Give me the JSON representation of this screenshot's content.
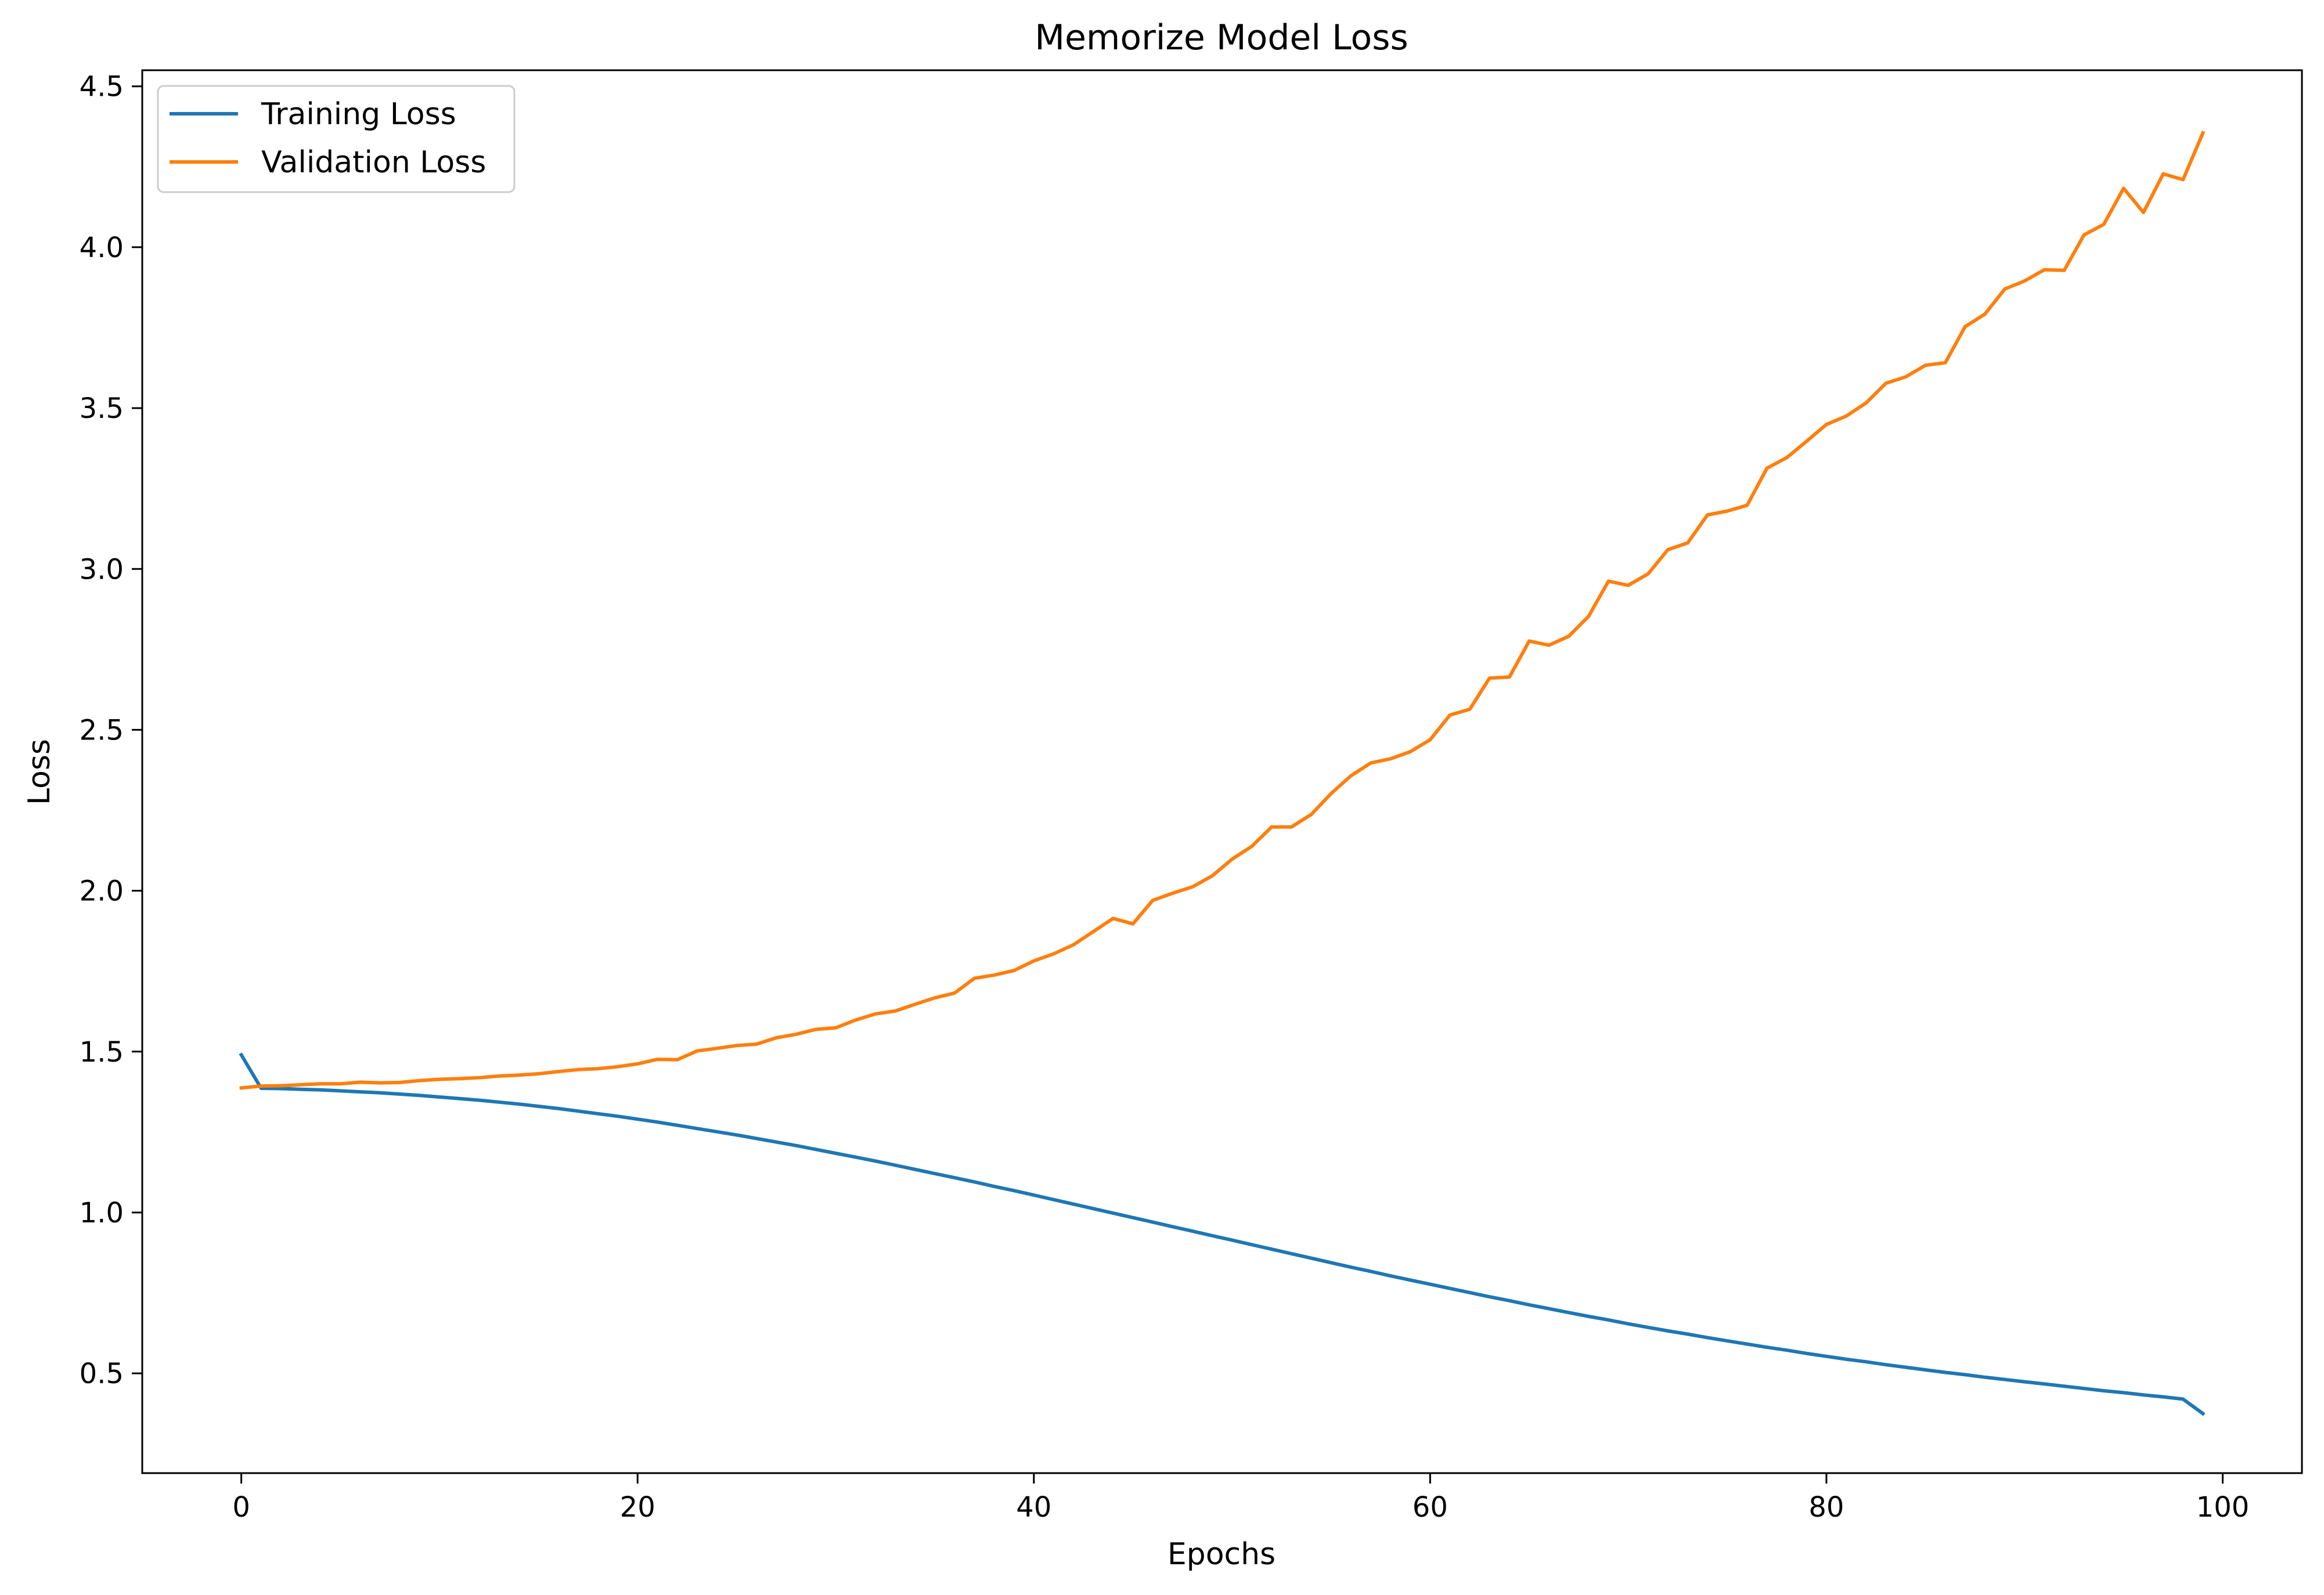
{
  "chart_data": {
    "type": "line",
    "title": "Memorize Model Loss",
    "xlabel": "Epochs",
    "ylabel": "Loss",
    "xlim": [
      -5,
      104
    ],
    "ylim": [
      0.19,
      4.55
    ],
    "xticks": [
      0,
      20,
      40,
      60,
      80,
      100
    ],
    "yticks": [
      0.5,
      1.0,
      1.5,
      2.0,
      2.5,
      3.0,
      3.5,
      4.0,
      4.5
    ],
    "grid": false,
    "legend_position": "top-left",
    "x": [
      0,
      1,
      2,
      3,
      4,
      5,
      6,
      7,
      8,
      9,
      10,
      11,
      12,
      13,
      14,
      15,
      16,
      17,
      18,
      19,
      20,
      21,
      22,
      23,
      24,
      25,
      26,
      27,
      28,
      29,
      30,
      31,
      32,
      33,
      34,
      35,
      36,
      37,
      38,
      39,
      40,
      41,
      42,
      43,
      44,
      45,
      46,
      47,
      48,
      49,
      50,
      51,
      52,
      53,
      54,
      55,
      56,
      57,
      58,
      59,
      60,
      61,
      62,
      63,
      64,
      65,
      66,
      67,
      68,
      69,
      70,
      71,
      72,
      73,
      74,
      75,
      76,
      77,
      78,
      79,
      80,
      81,
      82,
      83,
      84,
      85,
      86,
      87,
      88,
      89,
      90,
      91,
      92,
      93,
      94,
      95,
      96,
      97,
      98,
      99
    ],
    "series": [
      {
        "name": "Training Loss",
        "color": "#1f77b4",
        "values": [
          1.49,
          1.386,
          1.385,
          1.383,
          1.381,
          1.378,
          1.375,
          1.372,
          1.368,
          1.364,
          1.359,
          1.354,
          1.349,
          1.343,
          1.337,
          1.33,
          1.323,
          1.315,
          1.307,
          1.299,
          1.29,
          1.281,
          1.271,
          1.261,
          1.251,
          1.241,
          1.23,
          1.219,
          1.208,
          1.196,
          1.184,
          1.172,
          1.16,
          1.147,
          1.134,
          1.121,
          1.108,
          1.095,
          1.081,
          1.068,
          1.054,
          1.04,
          1.026,
          1.012,
          0.998,
          0.984,
          0.97,
          0.956,
          0.942,
          0.928,
          0.914,
          0.9,
          0.886,
          0.872,
          0.858,
          0.844,
          0.83,
          0.817,
          0.803,
          0.79,
          0.777,
          0.764,
          0.751,
          0.738,
          0.726,
          0.713,
          0.701,
          0.689,
          0.677,
          0.666,
          0.654,
          0.643,
          0.632,
          0.622,
          0.611,
          0.601,
          0.591,
          0.581,
          0.572,
          0.562,
          0.553,
          0.544,
          0.536,
          0.527,
          0.519,
          0.511,
          0.503,
          0.496,
          0.488,
          0.481,
          0.474,
          0.467,
          0.46,
          0.453,
          0.446,
          0.44,
          0.433,
          0.427,
          0.42,
          0.375
        ]
      },
      {
        "name": "Validation Loss",
        "color": "#ff7f0e",
        "values": [
          1.387,
          1.393,
          1.394,
          1.397,
          1.4,
          1.4,
          1.405,
          1.403,
          1.404,
          1.41,
          1.414,
          1.416,
          1.419,
          1.424,
          1.427,
          1.431,
          1.438,
          1.444,
          1.447,
          1.453,
          1.462,
          1.476,
          1.475,
          1.502,
          1.51,
          1.519,
          1.523,
          1.543,
          1.554,
          1.569,
          1.574,
          1.598,
          1.617,
          1.626,
          1.647,
          1.667,
          1.682,
          1.728,
          1.738,
          1.752,
          1.782,
          1.804,
          1.832,
          1.873,
          1.914,
          1.897,
          1.97,
          1.992,
          2.012,
          2.046,
          2.098,
          2.138,
          2.198,
          2.198,
          2.237,
          2.302,
          2.357,
          2.397,
          2.41,
          2.432,
          2.469,
          2.546,
          2.564,
          2.661,
          2.664,
          2.776,
          2.763,
          2.791,
          2.853,
          2.962,
          2.949,
          2.985,
          3.06,
          3.081,
          3.168,
          3.18,
          3.198,
          3.313,
          3.346,
          3.397,
          3.449,
          3.475,
          3.516,
          3.577,
          3.597,
          3.633,
          3.641,
          3.753,
          3.792,
          3.87,
          3.895,
          3.93,
          3.928,
          4.038,
          4.071,
          4.183,
          4.108,
          4.228,
          4.21,
          4.355
        ]
      }
    ]
  }
}
